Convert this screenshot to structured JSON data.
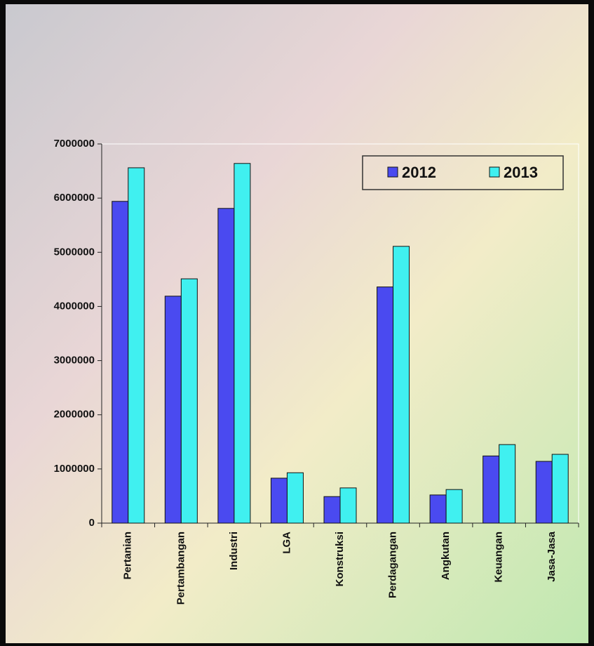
{
  "chart_data": {
    "type": "bar",
    "categories": [
      "Pertanian",
      "Pertambangan",
      "Industri",
      "LGA",
      "Konstruksi",
      "Perdagangan",
      "Angkutan",
      "Keuangan",
      "Jasa-Jasa"
    ],
    "series": [
      {
        "name": "2012",
        "color": "#4a4af0",
        "values": [
          5940000,
          4190000,
          5810000,
          830000,
          490000,
          4360000,
          520000,
          1240000,
          1140000
        ]
      },
      {
        "name": "2013",
        "color": "#40f0f0",
        "values": [
          6560000,
          4510000,
          6640000,
          930000,
          650000,
          5110000,
          620000,
          1450000,
          1270000
        ]
      }
    ],
    "ylim": [
      0,
      7000000
    ],
    "yticks": [
      0,
      1000000,
      2000000,
      3000000,
      4000000,
      5000000,
      6000000,
      7000000
    ]
  }
}
